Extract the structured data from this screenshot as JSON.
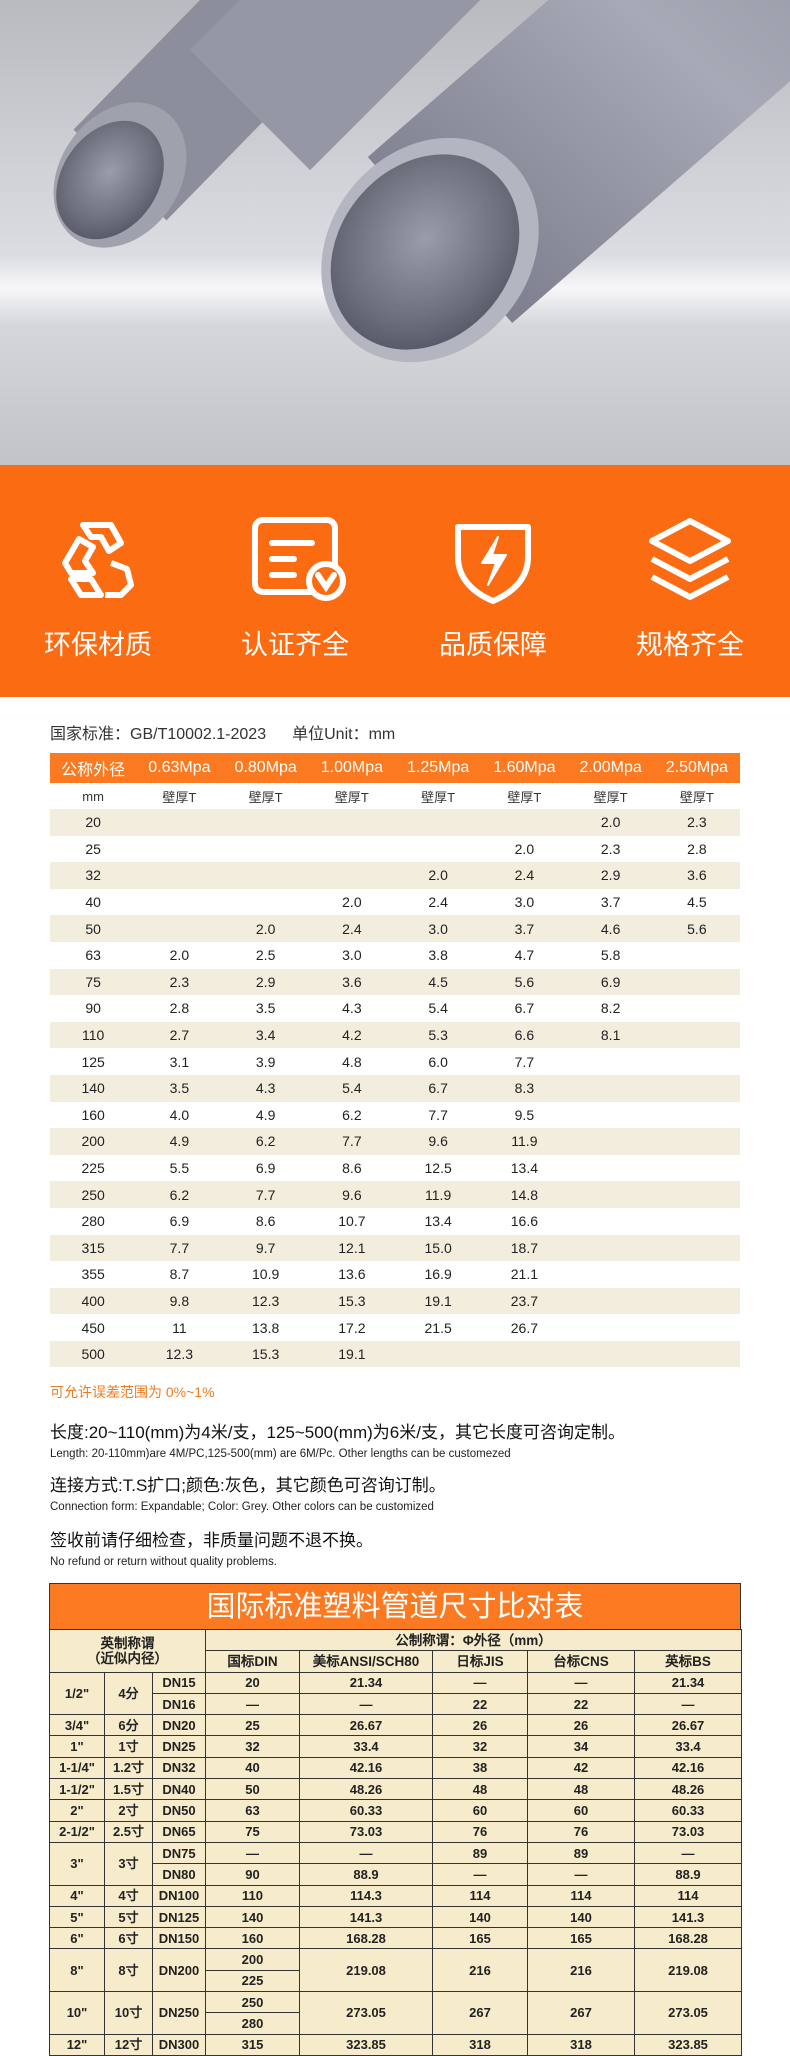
{
  "features": [
    "环保材质",
    "认证齐全",
    "品质保障",
    "规格齐全"
  ],
  "standard": "国家标准：GB/T10002.1-2023",
  "unit": "单位Unit：mm",
  "wall_table": {
    "headers": [
      "公称外径",
      "0.63Mpa",
      "0.80Mpa",
      "1.00Mpa",
      "1.25Mpa",
      "1.60Mpa",
      "2.00Mpa",
      "2.50Mpa"
    ],
    "subheaders": [
      "mm",
      "壁厚T",
      "壁厚T",
      "壁厚T",
      "壁厚T",
      "壁厚T",
      "壁厚T",
      "壁厚T"
    ],
    "rows": [
      [
        "20",
        null,
        null,
        null,
        null,
        null,
        "2.0",
        "2.3"
      ],
      [
        "25",
        null,
        null,
        null,
        null,
        "2.0",
        "2.3",
        "2.8"
      ],
      [
        "32",
        null,
        null,
        null,
        "2.0",
        "2.4",
        "2.9",
        "3.6"
      ],
      [
        "40",
        null,
        null,
        "2.0",
        "2.4",
        "3.0",
        "3.7",
        "4.5"
      ],
      [
        "50",
        null,
        "2.0",
        "2.4",
        "3.0",
        "3.7",
        "4.6",
        "5.6"
      ],
      [
        "63",
        "2.0",
        "2.5",
        "3.0",
        "3.8",
        "4.7",
        "5.8",
        null
      ],
      [
        "75",
        "2.3",
        "2.9",
        "3.6",
        "4.5",
        "5.6",
        "6.9",
        null
      ],
      [
        "90",
        "2.8",
        "3.5",
        "4.3",
        "5.4",
        "6.7",
        "8.2",
        null
      ],
      [
        "110",
        "2.7",
        "3.4",
        "4.2",
        "5.3",
        "6.6",
        "8.1",
        null
      ],
      [
        "125",
        "3.1",
        "3.9",
        "4.8",
        "6.0",
        "7.7",
        null,
        null
      ],
      [
        "140",
        "3.5",
        "4.3",
        "5.4",
        "6.7",
        "8.3",
        null,
        null
      ],
      [
        "160",
        "4.0",
        "4.9",
        "6.2",
        "7.7",
        "9.5",
        null,
        null
      ],
      [
        "200",
        "4.9",
        "6.2",
        "7.7",
        "9.6",
        "11.9",
        null,
        null
      ],
      [
        "225",
        "5.5",
        "6.9",
        "8.6",
        "12.5",
        "13.4",
        null,
        null
      ],
      [
        "250",
        "6.2",
        "7.7",
        "9.6",
        "11.9",
        "14.8",
        null,
        null
      ],
      [
        "280",
        "6.9",
        "8.6",
        "10.7",
        "13.4",
        "16.6",
        null,
        null
      ],
      [
        "315",
        "7.7",
        "9.7",
        "12.1",
        "15.0",
        "18.7",
        null,
        null
      ],
      [
        "355",
        "8.7",
        "10.9",
        "13.6",
        "16.9",
        "21.1",
        null,
        null
      ],
      [
        "400",
        "9.8",
        "12.3",
        "15.3",
        "19.1",
        "23.7",
        null,
        null
      ],
      [
        "450",
        "11",
        "13.8",
        "17.2",
        "21.5",
        "26.7",
        null,
        null
      ],
      [
        "500",
        "12.3",
        "15.3",
        "19.1",
        null,
        null,
        null,
        null
      ]
    ]
  },
  "tolerance": "可允许误差范围为 0%~1%",
  "notes": [
    {
      "zh": "长度:20~110(mm)为4米/支，125~500(mm)为6米/支，其它长度可咨询定制。",
      "en": "Length: 20-110mm)are 4M/PC,125-500(mm) are 6M/Pc. Other lengths can be customezed"
    },
    {
      "zh": "连接方式:T.S扩口;颜色:灰色，其它颜色可咨询订制。",
      "en": "Connection form: Expandable; Color: Grey. Other colors can be customized"
    },
    {
      "zh": "签收前请仔细检查，非质量问题不退不换。",
      "en": "No refund or return without quality problems."
    }
  ],
  "compare_table": {
    "title": "国际标准塑料管道尺寸比对表",
    "header_left": [
      "英制称谓",
      "（近似内径）"
    ],
    "header_right": "公制称谓：Φ外径（mm）",
    "columns": [
      "国标DIN",
      "美标ANSI/SCH80",
      "日标JIS",
      "台标CNS",
      "英标BS"
    ],
    "groups": [
      {
        "inch": "1/2\"",
        "cun": "4分",
        "rows": [
          [
            "DN15",
            "20",
            "21.34",
            "—",
            "—",
            "21.34"
          ],
          [
            "DN16",
            "—",
            "—",
            "22",
            "22",
            "—"
          ]
        ]
      },
      {
        "inch": "3/4\"",
        "cun": "6分",
        "rows": [
          [
            "DN20",
            "25",
            "26.67",
            "26",
            "26",
            "26.67"
          ]
        ]
      },
      {
        "inch": "1\"",
        "cun": "1寸",
        "rows": [
          [
            "DN25",
            "32",
            "33.4",
            "32",
            "34",
            "33.4"
          ]
        ]
      },
      {
        "inch": "1-1/4\"",
        "cun": "1.2寸",
        "rows": [
          [
            "DN32",
            "40",
            "42.16",
            "38",
            "42",
            "42.16"
          ]
        ]
      },
      {
        "inch": "1-1/2\"",
        "cun": "1.5寸",
        "rows": [
          [
            "DN40",
            "50",
            "48.26",
            "48",
            "48",
            "48.26"
          ]
        ]
      },
      {
        "inch": "2\"",
        "cun": "2寸",
        "rows": [
          [
            "DN50",
            "63",
            "60.33",
            "60",
            "60",
            "60.33"
          ]
        ]
      },
      {
        "inch": "2-1/2\"",
        "cun": "2.5寸",
        "rows": [
          [
            "DN65",
            "75",
            "73.03",
            "76",
            "76",
            "73.03"
          ]
        ]
      },
      {
        "inch": "3\"",
        "cun": "3寸",
        "rows": [
          [
            "DN75",
            "—",
            "—",
            "89",
            "89",
            "—"
          ],
          [
            "DN80",
            "90",
            "88.9",
            "—",
            "—",
            "88.9"
          ]
        ]
      },
      {
        "inch": "4\"",
        "cun": "4寸",
        "rows": [
          [
            "DN100",
            "110",
            "114.3",
            "114",
            "114",
            "114"
          ]
        ]
      },
      {
        "inch": "5\"",
        "cun": "5寸",
        "rows": [
          [
            "DN125",
            "140",
            "141.3",
            "140",
            "140",
            "141.3"
          ]
        ]
      },
      {
        "inch": "6\"",
        "cun": "6寸",
        "rows": [
          [
            "DN150",
            "160",
            "168.28",
            "165",
            "165",
            "168.28"
          ]
        ]
      },
      {
        "inch": "8\"",
        "cun": "8寸",
        "dn": "DN200",
        "din": [
          "200",
          "225"
        ],
        "rest": [
          "219.08",
          "216",
          "216",
          "219.08"
        ]
      },
      {
        "inch": "10\"",
        "cun": "10寸",
        "dn": "DN250",
        "din": [
          "250",
          "280"
        ],
        "rest": [
          "273.05",
          "267",
          "267",
          "273.05"
        ]
      },
      {
        "inch": "12\"",
        "cun": "12寸",
        "rows": [
          [
            "DN300",
            "315",
            "323.85",
            "318",
            "318",
            "323.85"
          ]
        ]
      }
    ]
  }
}
